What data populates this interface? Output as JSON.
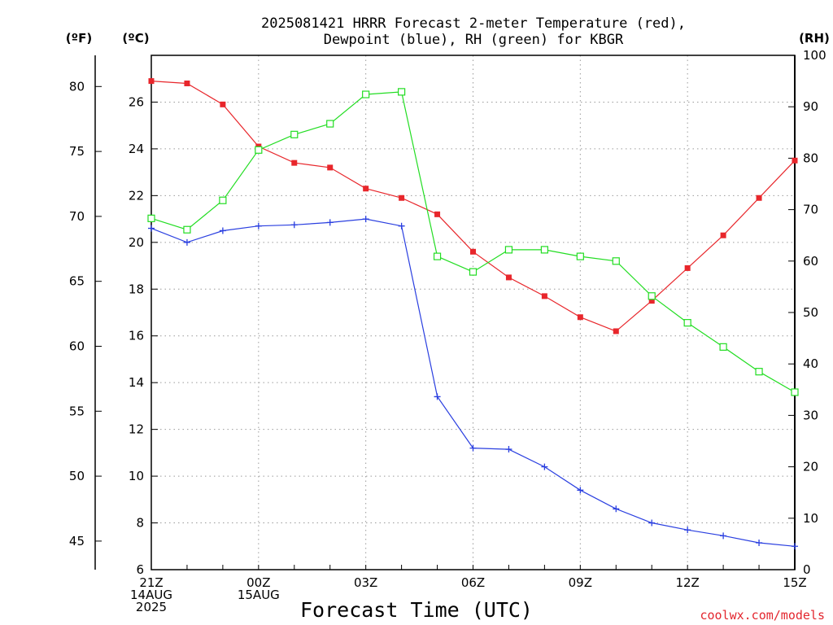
{
  "chart_data": {
    "type": "line",
    "title_line1": "2025081421 HRRR Forecast 2-meter Temperature (red),",
    "title_line2": "Dewpoint (blue), RH (green) for KBGR",
    "xlabel": "Forecast Time (UTC)",
    "credit": "coolwx.com/models",
    "unit_f": "(ºF)",
    "unit_c": "(ºC)",
    "unit_rh": "(RH)",
    "x": [
      "21Z",
      "22Z",
      "23Z",
      "00Z",
      "01Z",
      "02Z",
      "03Z",
      "04Z",
      "05Z",
      "06Z",
      "07Z",
      "08Z",
      "09Z",
      "10Z",
      "11Z",
      "12Z",
      "13Z",
      "14Z",
      "15Z"
    ],
    "x_tick_labels": [
      {
        "index": 0,
        "lines": [
          "21Z",
          "14AUG",
          "2025"
        ]
      },
      {
        "index": 3,
        "lines": [
          "00Z",
          "15AUG"
        ]
      },
      {
        "index": 6,
        "lines": [
          "03Z"
        ]
      },
      {
        "index": 9,
        "lines": [
          "06Z"
        ]
      },
      {
        "index": 12,
        "lines": [
          "09Z"
        ]
      },
      {
        "index": 15,
        "lines": [
          "12Z"
        ]
      },
      {
        "index": 18,
        "lines": [
          "15Z"
        ]
      }
    ],
    "y_c": {
      "lim": [
        6,
        28
      ],
      "ticks": [
        6,
        8,
        10,
        12,
        14,
        16,
        18,
        20,
        22,
        24,
        26
      ]
    },
    "y_f": {
      "ticks": [
        45,
        50,
        55,
        60,
        65,
        70,
        75,
        80
      ]
    },
    "y_rh": {
      "lim": [
        0,
        100
      ],
      "ticks": [
        0,
        10,
        20,
        30,
        40,
        50,
        60,
        70,
        80,
        90,
        100
      ]
    },
    "grid": true,
    "series": [
      {
        "name": "Temperature (red)",
        "axis": "celsius",
        "color": "#e8262b",
        "marker": "filled-square",
        "values": [
          26.9,
          26.8,
          25.9,
          24.1,
          23.4,
          23.2,
          22.3,
          21.9,
          21.2,
          19.6,
          18.5,
          17.7,
          16.8,
          16.2,
          17.5,
          18.9,
          20.3,
          21.9,
          23.5
        ]
      },
      {
        "name": "Dewpoint (blue)",
        "axis": "celsius",
        "color": "#2a3fe0",
        "marker": "plus",
        "values": [
          20.6,
          20.0,
          20.5,
          20.7,
          20.75,
          20.85,
          21.0,
          20.7,
          13.4,
          11.2,
          11.15,
          10.4,
          9.4,
          8.6,
          8.0,
          7.7,
          7.45,
          7.15,
          7.0
        ]
      },
      {
        "name": "RH (green)",
        "axis": "rh",
        "color": "#22dd22",
        "marker": "open-square",
        "values": [
          68.3,
          66.1,
          71.8,
          81.6,
          84.6,
          86.7,
          92.4,
          92.9,
          60.9,
          57.9,
          62.2,
          62.2,
          60.9,
          60.0,
          53.2,
          48.0,
          43.3,
          38.5,
          34.5
        ]
      }
    ]
  }
}
